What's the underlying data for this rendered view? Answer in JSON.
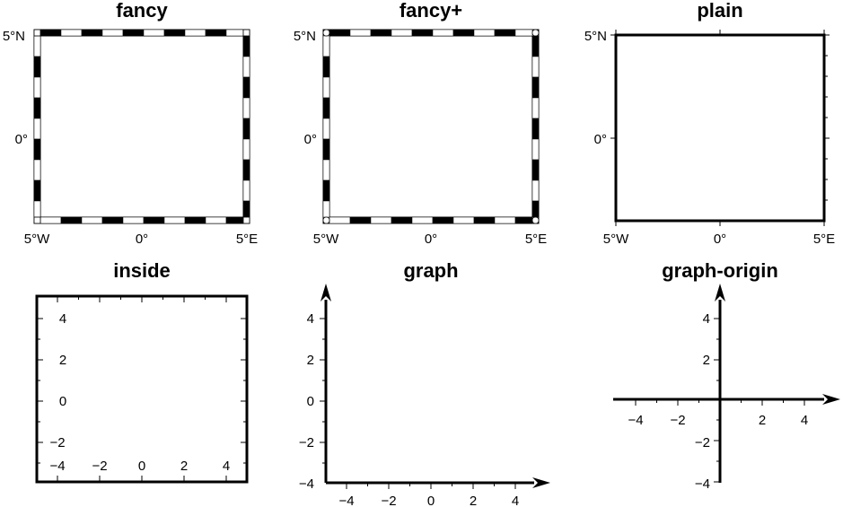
{
  "panels": [
    {
      "id": "fancy",
      "title": "fancy",
      "style": "fancy",
      "x_ticks": [
        "5°W",
        "0°",
        "5°E"
      ],
      "y_ticks": [
        "5°N",
        "0°"
      ]
    },
    {
      "id": "fancy-plus",
      "title": "fancy+",
      "style": "fancy+",
      "x_ticks": [
        "5°W",
        "0°",
        "5°E"
      ],
      "y_ticks": [
        "5°N",
        "0°"
      ]
    },
    {
      "id": "plain",
      "title": "plain",
      "style": "plain",
      "x_ticks": [
        "5°W",
        "0°",
        "5°E"
      ],
      "y_ticks": [
        "5°N",
        "0°"
      ]
    },
    {
      "id": "inside",
      "title": "inside",
      "style": "inside",
      "x_ticks": [
        "−4",
        "−2",
        "0",
        "2",
        "4"
      ],
      "y_ticks": [
        "4",
        "2",
        "0",
        "−2"
      ]
    },
    {
      "id": "graph",
      "title": "graph",
      "style": "graph",
      "x_ticks": [
        "−4",
        "−2",
        "0",
        "2",
        "4"
      ],
      "y_ticks": [
        "4",
        "2",
        "0",
        "−2",
        "−4"
      ]
    },
    {
      "id": "graph-origin",
      "title": "graph-origin",
      "style": "graph-origin",
      "x_ticks": [
        "−4",
        "−2",
        "2",
        "4"
      ],
      "y_ticks": [
        "4",
        "2",
        "−2",
        "−4"
      ]
    }
  ],
  "colors": {
    "ink": "#000000",
    "paper": "#ffffff"
  }
}
